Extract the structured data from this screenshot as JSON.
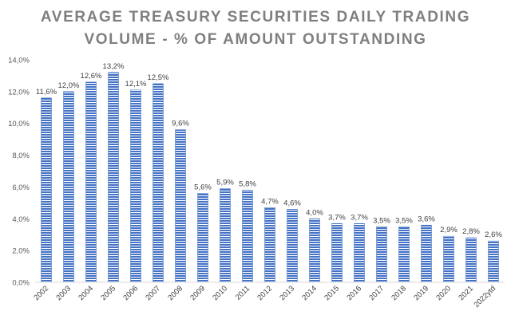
{
  "chart_data": {
    "type": "bar",
    "title_line1": "AVERAGE TREASURY SECURITIES DAILY TRADING",
    "title_line2": "VOLUME - % OF AMOUNT OUTSTANDING",
    "categories": [
      "2002",
      "2003",
      "2004",
      "2005",
      "2006",
      "2007",
      "2008",
      "2009",
      "2010",
      "2011",
      "2012",
      "2013",
      "2014",
      "2015",
      "2016",
      "2017",
      "2018",
      "2019",
      "2020",
      "2021",
      "2022ytd"
    ],
    "values": [
      11.6,
      12.0,
      12.6,
      13.2,
      12.1,
      12.5,
      9.6,
      5.6,
      5.9,
      5.8,
      4.7,
      4.6,
      4.0,
      3.7,
      3.7,
      3.5,
      3.5,
      3.6,
      2.9,
      2.8,
      2.6
    ],
    "labels": [
      "11,6%",
      "12,0%",
      "12,6%",
      "13,2%",
      "12,1%",
      "12,5%",
      "9,6%",
      "5,6%",
      "5,9%",
      "5,8%",
      "4,7%",
      "4,6%",
      "4,0%",
      "3,7%",
      "3,7%",
      "3,5%",
      "3,5%",
      "3,6%",
      "2,9%",
      "2,8%",
      "2,6%"
    ],
    "yticks": [
      0,
      2,
      4,
      6,
      8,
      10,
      12,
      14
    ],
    "ytick_labels": [
      "0,0%",
      "2,0%",
      "4,0%",
      "6,0%",
      "8,0%",
      "10,0%",
      "12,0%",
      "14,0%"
    ],
    "ylim": [
      0,
      14
    ],
    "xlabel": "",
    "ylabel": "",
    "grid": false,
    "bar_color": "#4472c4"
  }
}
